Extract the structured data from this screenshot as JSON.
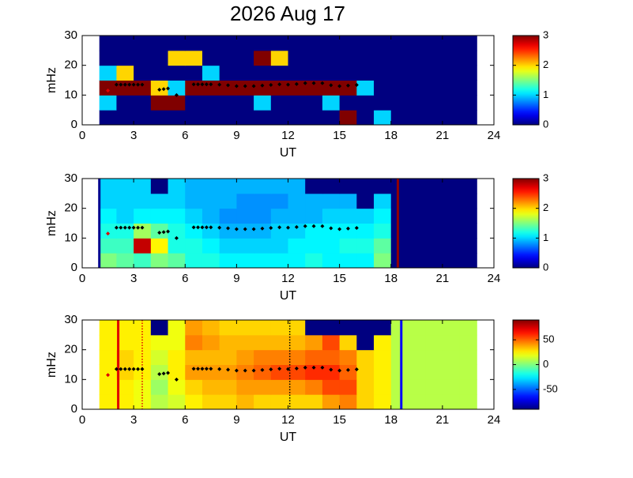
{
  "title": "2026 Aug 17",
  "chart_data": [
    {
      "type": "heatmap",
      "xlabel": "UT",
      "ylabel": "mHz",
      "xlim": [
        0,
        24
      ],
      "ylim": [
        0,
        30
      ],
      "xticks": [
        0,
        3,
        6,
        9,
        12,
        15,
        18,
        21,
        24
      ],
      "yticks": [
        0,
        10,
        20,
        30
      ],
      "colormap": "jet",
      "clim": [
        0,
        3
      ],
      "cticks": [
        0,
        1,
        2,
        3
      ],
      "xbins": [
        1,
        2,
        3,
        4,
        5,
        6,
        7,
        8,
        9,
        10,
        11,
        12,
        13,
        14,
        15,
        16,
        17,
        18,
        19,
        20,
        21,
        22,
        23
      ],
      "ybins": [
        0,
        5,
        10,
        15,
        20,
        25,
        30
      ],
      "z": [
        [
          0,
          0,
          0,
          0,
          0,
          0,
          0,
          0,
          0,
          0,
          0,
          0,
          0,
          0,
          3,
          0,
          1,
          0,
          0,
          0,
          0,
          0
        ],
        [
          1,
          0,
          0,
          3,
          3,
          0,
          0,
          0,
          0,
          1,
          0,
          0,
          0,
          1,
          0,
          0,
          0,
          0,
          0,
          0,
          0,
          0
        ],
        [
          3,
          3,
          3,
          2,
          1,
          3,
          3,
          3,
          3,
          3,
          3,
          3,
          3,
          3,
          3,
          1,
          0,
          0,
          0,
          0,
          0,
          0
        ],
        [
          1,
          2,
          0,
          0,
          0,
          0,
          1,
          0,
          0,
          0,
          0,
          0,
          0,
          0,
          0,
          0,
          0,
          0,
          0,
          0,
          0,
          0
        ],
        [
          0,
          0,
          0,
          0,
          2,
          2,
          0,
          0,
          0,
          3,
          2,
          0,
          0,
          0,
          0,
          0,
          0,
          0,
          0,
          0,
          0,
          0
        ],
        [
          0,
          0,
          0,
          0,
          0,
          0,
          0,
          0,
          0,
          0,
          0,
          0,
          0,
          0,
          0,
          0,
          0,
          0,
          0,
          0,
          0,
          0
        ]
      ],
      "trace": {
        "color": "#000000",
        "x": [
          2,
          2.25,
          2.5,
          2.75,
          3,
          3.25,
          3.5,
          4.5,
          4.75,
          5,
          5.5,
          6.5,
          6.75,
          7,
          7.25,
          7.5,
          8,
          8.5,
          9,
          9.5,
          10,
          10.5,
          11,
          11.5,
          12,
          12.5,
          13,
          13.5,
          14,
          14.5,
          15,
          15.5,
          16
        ],
        "y": [
          13.5,
          13.5,
          13.5,
          13.5,
          13.5,
          13.5,
          13.5,
          11.8,
          12,
          12.2,
          10,
          13.6,
          13.6,
          13.6,
          13.6,
          13.6,
          13.5,
          13.3,
          13,
          13,
          13,
          13.2,
          13.4,
          13.6,
          13.5,
          13.7,
          14,
          14,
          14,
          13.3,
          13,
          13.2,
          13.4
        ]
      },
      "point": {
        "x": 1.5,
        "y": 11.5,
        "color": "#e00000"
      },
      "vlines": []
    },
    {
      "type": "heatmap",
      "xlabel": "UT",
      "ylabel": "mHz",
      "xlim": [
        0,
        24
      ],
      "ylim": [
        0,
        30
      ],
      "xticks": [
        0,
        3,
        6,
        9,
        12,
        15,
        18,
        21,
        24
      ],
      "yticks": [
        0,
        10,
        20,
        30
      ],
      "colormap": "jet",
      "clim": [
        0,
        3
      ],
      "cticks": [
        0,
        1,
        2,
        3
      ],
      "xbins": [
        1,
        2,
        3,
        4,
        5,
        6,
        7,
        8,
        9,
        10,
        11,
        12,
        13,
        14,
        15,
        16,
        17,
        18,
        19,
        20,
        21,
        22,
        23
      ],
      "ybins": [
        0,
        5,
        10,
        15,
        20,
        25,
        30
      ],
      "z": [
        [
          1.5,
          1.4,
          1.3,
          1.5,
          1.4,
          1.2,
          1.2,
          1.1,
          1.1,
          1.1,
          1.1,
          1.1,
          1.2,
          1.1,
          1.1,
          1.1,
          1.5,
          0,
          0,
          0,
          0,
          0
        ],
        [
          1.3,
          1.3,
          2.8,
          1.9,
          1.2,
          1.2,
          1.1,
          1.0,
          1.0,
          1.0,
          1.0,
          1.1,
          1.1,
          1.1,
          1.2,
          1.2,
          1.4,
          0,
          0,
          0,
          0,
          0
        ],
        [
          1.2,
          1.2,
          1.6,
          1.4,
          1.2,
          1.1,
          1.0,
          0.9,
          0.9,
          0.9,
          1.0,
          1.0,
          1.1,
          1.1,
          1.1,
          1.1,
          1.2,
          0,
          0,
          0,
          0,
          0
        ],
        [
          1.1,
          1.0,
          1.1,
          1.1,
          1.1,
          1.0,
          0.9,
          0.8,
          0.8,
          0.8,
          0.9,
          0.9,
          0.9,
          1.0,
          1.0,
          1.0,
          1.1,
          0,
          0,
          0,
          0,
          0
        ],
        [
          1.0,
          1.0,
          1.0,
          1.0,
          1.0,
          0.9,
          0.9,
          0.9,
          0.8,
          0.8,
          0.8,
          0.9,
          0.9,
          0.9,
          0.9,
          0,
          1.0,
          0,
          0,
          0,
          0,
          0
        ],
        [
          1.0,
          1.0,
          1.0,
          0,
          1.0,
          0.9,
          0.9,
          0.9,
          0.9,
          0.9,
          0.9,
          0.9,
          0,
          0,
          0,
          0,
          0,
          0,
          0,
          0,
          0,
          0
        ]
      ],
      "trace": {
        "color": "#000000",
        "x": [
          2,
          2.25,
          2.5,
          2.75,
          3,
          3.25,
          3.5,
          4.5,
          4.75,
          5,
          5.5,
          6.5,
          6.75,
          7,
          7.25,
          7.5,
          8,
          8.5,
          9,
          9.5,
          10,
          10.5,
          11,
          11.5,
          12,
          12.5,
          13,
          13.5,
          14,
          14.5,
          15,
          15.5,
          16
        ],
        "y": [
          13.5,
          13.5,
          13.5,
          13.5,
          13.5,
          13.5,
          13.5,
          11.8,
          12,
          12.2,
          10,
          13.6,
          13.6,
          13.6,
          13.6,
          13.6,
          13.5,
          13.3,
          13,
          13,
          13,
          13.2,
          13.4,
          13.6,
          13.5,
          13.7,
          14,
          14,
          14,
          13.3,
          13,
          13.2,
          13.4
        ]
      },
      "point": {
        "x": 1.5,
        "y": 11.5,
        "color": "#e00000"
      },
      "vlines": [
        {
          "x": 1.0,
          "color": "#00008f",
          "style": "solid"
        },
        {
          "x": 18.4,
          "color": "#8f0000",
          "style": "solid"
        }
      ]
    },
    {
      "type": "heatmap",
      "xlabel": "UT",
      "ylabel": "mHz",
      "xlim": [
        0,
        24
      ],
      "ylim": [
        0,
        30
      ],
      "xticks": [
        0,
        3,
        6,
        9,
        12,
        15,
        18,
        21,
        24
      ],
      "yticks": [
        0,
        10,
        20,
        30
      ],
      "colormap": "jet",
      "clim": [
        -90,
        90
      ],
      "cticks": [
        -50,
        0,
        50
      ],
      "xbins": [
        1,
        2,
        3,
        4,
        5,
        6,
        7,
        8,
        9,
        10,
        11,
        12,
        13,
        14,
        15,
        16,
        17,
        18,
        19,
        20,
        21,
        22,
        23
      ],
      "ybins": [
        0,
        5,
        10,
        15,
        20,
        25,
        30
      ],
      "z": [
        [
          25,
          25,
          20,
          10,
          15,
          25,
          30,
          30,
          35,
          30,
          30,
          30,
          30,
          40,
          45,
          30,
          25,
          10,
          10,
          10,
          10,
          10
        ],
        [
          25,
          25,
          20,
          5,
          20,
          30,
          35,
          35,
          40,
          40,
          40,
          40,
          45,
          55,
          55,
          30,
          25,
          10,
          10,
          10,
          10,
          10
        ],
        [
          25,
          30,
          25,
          10,
          25,
          40,
          40,
          40,
          45,
          50,
          55,
          55,
          60,
          60,
          50,
          30,
          25,
          10,
          10,
          10,
          10,
          10
        ],
        [
          25,
          30,
          25,
          15,
          25,
          35,
          35,
          35,
          40,
          45,
          45,
          45,
          50,
          50,
          45,
          30,
          25,
          10,
          10,
          10,
          10,
          10
        ],
        [
          25,
          25,
          25,
          20,
          20,
          45,
          40,
          35,
          35,
          35,
          35,
          35,
          40,
          55,
          30,
          -90,
          25,
          10,
          10,
          10,
          10,
          10
        ],
        [
          25,
          25,
          25,
          -90,
          20,
          40,
          35,
          30,
          30,
          30,
          30,
          30,
          -90,
          -90,
          -90,
          -90,
          -90,
          10,
          10,
          10,
          10,
          10
        ]
      ],
      "trace": {
        "color": "#000000",
        "x": [
          2,
          2.25,
          2.5,
          2.75,
          3,
          3.25,
          3.5,
          4.5,
          4.75,
          5,
          5.5,
          6.5,
          6.75,
          7,
          7.25,
          7.5,
          8,
          8.5,
          9,
          9.5,
          10,
          10.5,
          11,
          11.5,
          12,
          12.5,
          13,
          13.5,
          14,
          14.5,
          15,
          15.5,
          16
        ],
        "y": [
          13.5,
          13.5,
          13.5,
          13.5,
          13.5,
          13.5,
          13.5,
          11.8,
          12,
          12.2,
          10,
          13.6,
          13.6,
          13.6,
          13.6,
          13.6,
          13.5,
          13.3,
          13,
          13,
          13,
          13.2,
          13.4,
          13.6,
          13.5,
          13.7,
          14,
          14,
          14,
          13.3,
          13,
          13.2,
          13.4
        ]
      },
      "point": {
        "x": 1.5,
        "y": 11.5,
        "color": "#e00000"
      },
      "vlines": [
        {
          "x": 2.1,
          "color": "#e00000",
          "style": "solid"
        },
        {
          "x": 3.5,
          "color": "#e00000",
          "style": "dotted"
        },
        {
          "x": 12.1,
          "color": "#000000",
          "style": "dotted"
        },
        {
          "x": 18.6,
          "color": "#0000ff",
          "style": "solid"
        }
      ]
    }
  ]
}
